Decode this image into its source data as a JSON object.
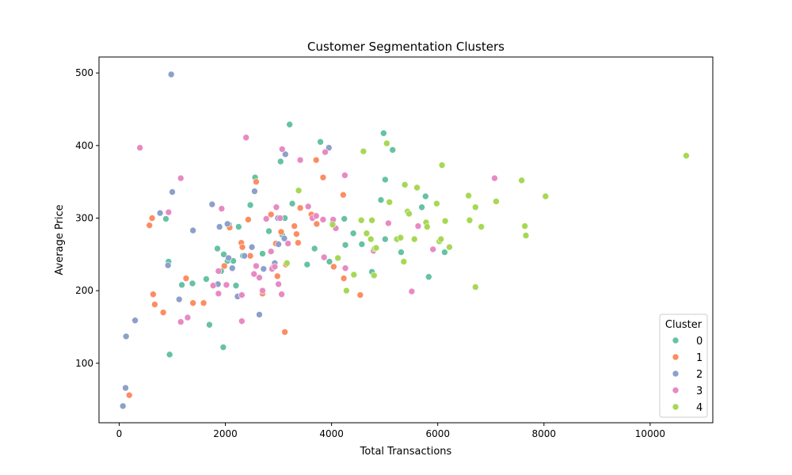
{
  "chart_data": {
    "type": "scatter",
    "title": "Customer Segmentation Clusters",
    "xlabel": "Total Transactions",
    "ylabel": "Average Price",
    "xlim": [
      -380,
      11180
    ],
    "ylim": [
      18,
      522
    ],
    "xticks": [
      0,
      2000,
      4000,
      6000,
      8000,
      10000
    ],
    "yticks": [
      100,
      200,
      300,
      400,
      500
    ],
    "grid": false,
    "legend": {
      "title": "Cluster",
      "placement": "lower-right"
    },
    "series": [
      {
        "name": "0",
        "color": "#66c2a5",
        "points": [
          [
            3210,
            429
          ],
          [
            4980,
            417
          ],
          [
            3790,
            405
          ],
          [
            5150,
            394
          ],
          [
            3040,
            378
          ],
          [
            2560,
            356
          ],
          [
            5010,
            353
          ],
          [
            4930,
            325
          ],
          [
            5770,
            330
          ],
          [
            2470,
            318
          ],
          [
            3260,
            320
          ],
          [
            3120,
            300
          ],
          [
            4020,
            293
          ],
          [
            4240,
            299
          ],
          [
            2250,
            288
          ],
          [
            5700,
            315
          ],
          [
            2070,
            291
          ],
          [
            1970,
            250
          ],
          [
            2330,
            248
          ],
          [
            2820,
            282
          ],
          [
            3070,
            277
          ],
          [
            3680,
            258
          ],
          [
            3960,
            240
          ],
          [
            4410,
            279
          ],
          [
            5010,
            271
          ],
          [
            4570,
            264
          ],
          [
            4260,
            263
          ],
          [
            1850,
            258
          ],
          [
            2150,
            241
          ],
          [
            5310,
            253
          ],
          [
            6130,
            253
          ],
          [
            4760,
            226
          ],
          [
            5830,
            219
          ],
          [
            3540,
            236
          ],
          [
            1700,
            153
          ],
          [
            1960,
            122
          ],
          [
            950,
            112
          ],
          [
            930,
            240
          ],
          [
            1180,
            208
          ],
          [
            1380,
            210
          ],
          [
            2040,
            241
          ],
          [
            2200,
            207
          ],
          [
            1640,
            216
          ],
          [
            880,
            299
          ],
          [
            1920,
            227
          ],
          [
            2700,
            251
          ]
        ]
      },
      {
        "name": "1",
        "color": "#fc8d62",
        "points": [
          [
            190,
            56
          ],
          [
            570,
            290
          ],
          [
            620,
            300
          ],
          [
            640,
            195
          ],
          [
            670,
            181
          ],
          [
            830,
            170
          ],
          [
            1260,
            217
          ],
          [
            1390,
            183
          ],
          [
            1590,
            183
          ],
          [
            1980,
            234
          ],
          [
            2080,
            287
          ],
          [
            2300,
            266
          ],
          [
            2320,
            260
          ],
          [
            2430,
            298
          ],
          [
            2470,
            248
          ],
          [
            2580,
            350
          ],
          [
            2700,
            196
          ],
          [
            2860,
            305
          ],
          [
            2890,
            232
          ],
          [
            2950,
            265
          ],
          [
            2980,
            220
          ],
          [
            3050,
            281
          ],
          [
            3120,
            143
          ],
          [
            3140,
            236
          ],
          [
            3300,
            289
          ],
          [
            3340,
            278
          ],
          [
            3370,
            266
          ],
          [
            3410,
            314
          ],
          [
            3620,
            305
          ],
          [
            3710,
            380
          ],
          [
            3720,
            292
          ],
          [
            3840,
            356
          ],
          [
            4040,
            233
          ],
          [
            4220,
            332
          ],
          [
            4230,
            217
          ],
          [
            4540,
            194
          ]
        ]
      },
      {
        "name": "2",
        "color": "#8da0cb",
        "points": [
          [
            70,
            41
          ],
          [
            120,
            66
          ],
          [
            130,
            137
          ],
          [
            300,
            159
          ],
          [
            770,
            307
          ],
          [
            920,
            235
          ],
          [
            980,
            498
          ],
          [
            1000,
            336
          ],
          [
            1130,
            188
          ],
          [
            1390,
            283
          ],
          [
            1750,
            319
          ],
          [
            1860,
            209
          ],
          [
            1890,
            288
          ],
          [
            2040,
            292
          ],
          [
            2060,
            245
          ],
          [
            2130,
            231
          ],
          [
            2230,
            192
          ],
          [
            2360,
            248
          ],
          [
            2500,
            260
          ],
          [
            2550,
            337
          ],
          [
            2640,
            167
          ],
          [
            2720,
            230
          ],
          [
            2930,
            238
          ],
          [
            2990,
            300
          ],
          [
            3000,
            264
          ],
          [
            3110,
            272
          ],
          [
            3130,
            388
          ],
          [
            3950,
            397
          ]
        ]
      },
      {
        "name": "3",
        "color": "#e78ac3",
        "points": [
          [
            390,
            397
          ],
          [
            930,
            308
          ],
          [
            1160,
            355
          ],
          [
            1160,
            157
          ],
          [
            1290,
            163
          ],
          [
            1770,
            207
          ],
          [
            1870,
            227
          ],
          [
            1870,
            196
          ],
          [
            1930,
            313
          ],
          [
            2020,
            208
          ],
          [
            2310,
            194
          ],
          [
            2310,
            158
          ],
          [
            2390,
            411
          ],
          [
            2540,
            223
          ],
          [
            2580,
            234
          ],
          [
            2640,
            218
          ],
          [
            2700,
            200
          ],
          [
            2770,
            299
          ],
          [
            2860,
            254
          ],
          [
            2880,
            230
          ],
          [
            2930,
            233
          ],
          [
            2960,
            315
          ],
          [
            3000,
            209
          ],
          [
            3030,
            300
          ],
          [
            3060,
            195
          ],
          [
            3070,
            395
          ],
          [
            3180,
            265
          ],
          [
            3410,
            380
          ],
          [
            3560,
            316
          ],
          [
            3640,
            300
          ],
          [
            3710,
            303
          ],
          [
            3840,
            298
          ],
          [
            3860,
            246
          ],
          [
            3880,
            391
          ],
          [
            4030,
            298
          ],
          [
            4080,
            286
          ],
          [
            4250,
            359
          ],
          [
            4260,
            231
          ],
          [
            4790,
            255
          ],
          [
            5070,
            293
          ],
          [
            5510,
            199
          ],
          [
            5630,
            289
          ],
          [
            5910,
            257
          ],
          [
            7070,
            355
          ]
        ]
      },
      {
        "name": "4",
        "color": "#a6d854",
        "points": [
          [
            3160,
            238
          ],
          [
            3380,
            338
          ],
          [
            4020,
            291
          ],
          [
            4120,
            245
          ],
          [
            4280,
            200
          ],
          [
            4420,
            222
          ],
          [
            4560,
            297
          ],
          [
            4600,
            392
          ],
          [
            4660,
            279
          ],
          [
            4740,
            271
          ],
          [
            4760,
            297
          ],
          [
            4800,
            221
          ],
          [
            4810,
            258
          ],
          [
            4840,
            259
          ],
          [
            5040,
            403
          ],
          [
            5090,
            322
          ],
          [
            5230,
            271
          ],
          [
            5300,
            273
          ],
          [
            5360,
            240
          ],
          [
            5380,
            346
          ],
          [
            5430,
            309
          ],
          [
            5460,
            306
          ],
          [
            5560,
            271
          ],
          [
            5610,
            342
          ],
          [
            5780,
            294
          ],
          [
            5800,
            288
          ],
          [
            5980,
            320
          ],
          [
            6030,
            268
          ],
          [
            6060,
            271
          ],
          [
            6080,
            373
          ],
          [
            6140,
            296
          ],
          [
            6220,
            260
          ],
          [
            6580,
            331
          ],
          [
            6600,
            297
          ],
          [
            6710,
            205
          ],
          [
            6710,
            315
          ],
          [
            6820,
            288
          ],
          [
            7100,
            323
          ],
          [
            7580,
            352
          ],
          [
            7640,
            289
          ],
          [
            7660,
            276
          ],
          [
            8030,
            330
          ],
          [
            10680,
            386
          ]
        ]
      }
    ]
  }
}
